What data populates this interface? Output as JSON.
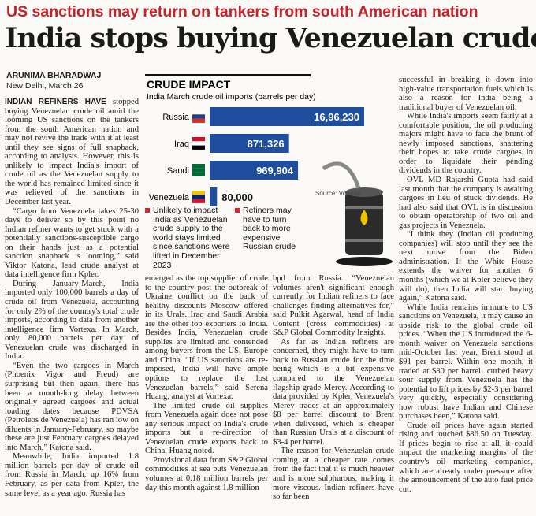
{
  "kicker": "US sanctions may return on tankers from south American nation",
  "headline": "India stops buying Venezuelan crude",
  "byline": {
    "author": "ARUNIMA BHARADWAJ",
    "dateline": "New Delhi, March 26"
  },
  "chart_data": {
    "type": "bar",
    "title": "CRUDE IMPACT",
    "subtitle": "India March crude oil imports (barrels per day)",
    "categories": [
      "Russia",
      "Iraq",
      "Saudi",
      "Venezuela"
    ],
    "values": [
      1696230,
      871326,
      969904,
      80000
    ],
    "value_labels": [
      "16,96,230",
      "871,326",
      "969,904",
      "80,000"
    ],
    "color": "#1f4e9e",
    "source": "Source: Vortexa",
    "notes": [
      "Unlikely to impact India as Venezuelan crude supply to the world stays limited since sanctions were lifted in December 2023",
      "Refiners may have to turn back to more expensive Russian crude"
    ]
  },
  "article": {
    "lead": "INDIAN REFINERS HAVE",
    "columns": [
      [
        "stopped buying Venezuelan crude oil amid the looming US sanctions on the tankers from the south American nation and may not revive the trade with it at least until they see signs of full snapback, according to analysts. However, this is unlikely to impact India's import of crude oil as the Venezuelan supply to the world has remained limited since it was relieved of the sanctions in December last year.",
        "“Cargo from Venezuela takes 25-30 days to deliver so by this point no Indian refiner wants to get stuck with a potentially sanctions-susceptible cargo on their hands just as a potential sanction snapback is looming,” said Viktor Katona, lead crude analyst at data intelligence firm Kpler.",
        "During January-March, India imported only 100,000 barrels a day of crude oil from Venezuela, accounting for only 2% of the country's total crude imports, according to data from another intelligence firm Vortexa. In March, only 80,000 barrels per day of Venezuelan crude was discharged in India.",
        "“Even the two cargoes in March (Phoenix Vigor and Freud) are surprising but then again, there has been a month-long delay between originally agreed cargoes and actual loading dates because PDVSA (Petroleos de Venezuela) has ran low on diluents in January-February, so maybe these are just February cargoes delayed into March,” Katona said.",
        "Meanwhile, India imported 1.8 million barrels per day of crude oil from Russia in March, up 16% from February, as per data from Kpler, the same level as a year ago. Russia has"
      ],
      [
        "emerged as the top supplier of crude to the country post the outbreak of Ukraine conflict on the back of healthy discounts Moscow offered in its Urals. Iraq and Saudi Arabia are the other top exporters to India. Besides India, Venezuelan crude supplies are limited and contended among buyers from the US, Europe and China. “If US sanctions are re-imposed, India will have ample options to replace the lost Venezuelan barrels,” said Serena Huang, analyst at Vortexa.",
        "The limited crude oil supplies from Venezuela again does not pose any serious impact on India's crude imports but a re-direction of Venezuelan crude exports back to China, Huang noted.",
        "Provisional data from S&P Global commodities at sea puts Venezuelan volumes at 0.18 million barrels per day this month against 1.8 million"
      ],
      [
        "bpd from Russia. “Venezuelan volumes aren't significant enough currently for Indian refiners to face challenges finding alternatives for,” said Pulkit Agarwal, head of India Content (cross commodities) at S&P Global Commodity Insights.",
        "As far as Indian refiners are concerned, they might have to turn back to Russian crude for the time being which is a bit expensive compared to the Venezuelan flagship grade Merey. According to data provided by Kpler, Venezuela's Merey trades at an approximately $8 per barrel discount to Brent when delivered, which is cheaper than Russian Urals at a discount of $3-4 per barrel.",
        "The reason for Venezuelan crude coming at a cheaper rate comes from the fact that it is much heavier and is more sulphurous, making it more viscous. Indian refiners have so far been"
      ],
      [
        "successful in breaking it down into high-value transportation fuels which is also a reason for India being a traditional buyer of Venezuelan oil.",
        "While India's imports seem fairly at a comfortable position, the oil producing majors might have to face the brunt of newly imposed sanctions, shattering their hopes to take crude cargoes in order to liquidate their pending dividends in the country.",
        "OVL MD Rajarshi Gupta had said last month that the company is awaiting cargoes in lieu of stuck dividends. He had also said that OVL is in discussion to obtain operatorship of two oil and gas projects in Venezuela.",
        "“I think they (Indian oil producing companies) will stop until they see the next move from the Biden administration. If the White House extends the waiver for another 6 months (which we at Kpler believe they will do), then India will start buying again,” Katona said.",
        "While India remains immune to US sanctions on Venezuela, it may cause an upside risk to the global crude oil prices. “When the US introduced the 6-month waiver on Venezuela sanctions mid-October last year, Brent stood at $91 per barrel. Within one month, it traded at $80 per barrel...curbed heavy sour supply from Venezuela has the potential to lift prices by $2-3 per barrel very quickly, especially considering how robust have Indian and Chinese purchases been,” Katona said.",
        "Crude oil prices have again started rising and touched $86.50 on Tuesday. If prices begin to rise at all, it could impact the marketing margins of the country's oil marketing companies, which are already under pressure after the announcement of the auto fuel price cut."
      ]
    ]
  }
}
